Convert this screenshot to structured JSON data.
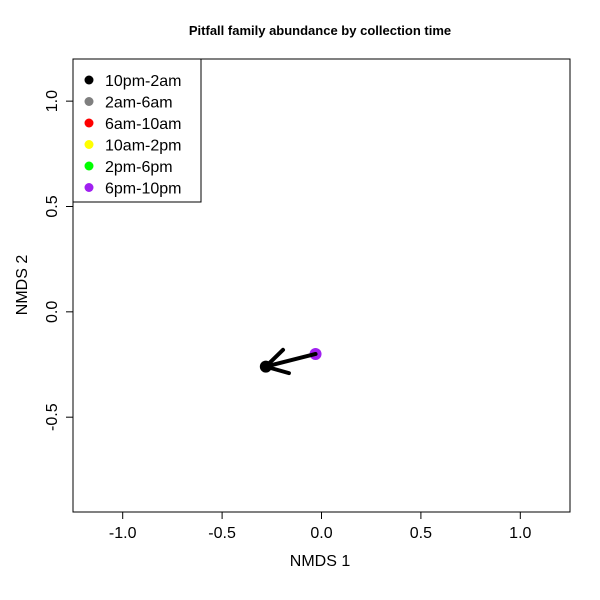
{
  "chart_data": {
    "type": "scatter",
    "title": "Pitfall family abundance by collection time",
    "xlabel": "NMDS 1",
    "ylabel": "NMDS 2",
    "xlim": [
      -1.25,
      1.25
    ],
    "ylim": [
      -0.95,
      1.2
    ],
    "xticks": [
      "-1.0",
      "-0.5",
      "0.0",
      "0.5",
      "1.0"
    ],
    "yticks": [
      "-0.5",
      "0.0",
      "0.5",
      "1.0"
    ],
    "grid": false,
    "legend_position": "top-left",
    "series": [
      {
        "name": "10pm-2am",
        "color": "#000000",
        "x": [
          -0.28
        ],
        "y": [
          -0.26
        ]
      },
      {
        "name": "2am-6am",
        "color": "#7f7f7f",
        "x": [],
        "y": []
      },
      {
        "name": "6am-10am",
        "color": "#ff0000",
        "x": [],
        "y": []
      },
      {
        "name": "10am-2pm",
        "color": "#ffff00",
        "x": [],
        "y": []
      },
      {
        "name": "2pm-6pm",
        "color": "#00ff00",
        "x": [],
        "y": []
      },
      {
        "name": "6pm-10pm",
        "color": "#a020f0",
        "x": [
          -0.03
        ],
        "y": [
          -0.2
        ]
      }
    ],
    "arrow": {
      "from": [
        -0.03,
        -0.2
      ],
      "to": [
        -0.28,
        -0.26
      ],
      "color": "#000000"
    }
  }
}
